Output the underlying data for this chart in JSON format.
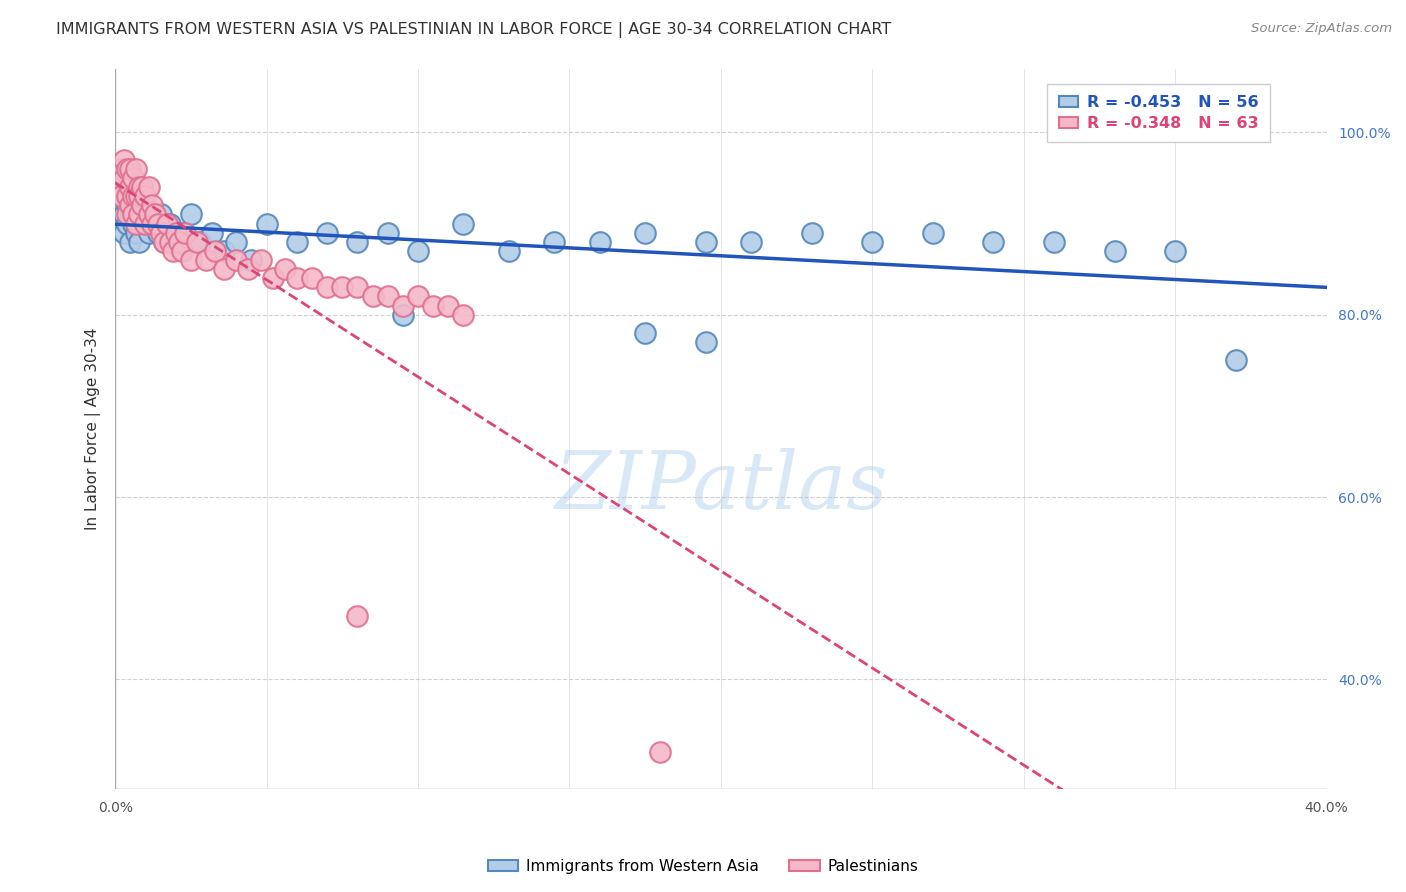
{
  "title": "IMMIGRANTS FROM WESTERN ASIA VS PALESTINIAN IN LABOR FORCE | AGE 30-34 CORRELATION CHART",
  "source": "Source: ZipAtlas.com",
  "ylabel": "In Labor Force | Age 30-34",
  "xlim": [
    0.0,
    0.4
  ],
  "ylim": [
    0.28,
    1.07
  ],
  "xticks": [
    0.0,
    0.05,
    0.1,
    0.15,
    0.2,
    0.25,
    0.3,
    0.35,
    0.4
  ],
  "yticks": [
    0.4,
    0.6,
    0.8,
    1.0
  ],
  "ytick_labels": [
    "40.0%",
    "60.0%",
    "80.0%",
    "100.0%"
  ],
  "grid_color": "#d0d0d0",
  "background_color": "#ffffff",
  "blue_face_color": "#b3cce8",
  "blue_edge_color": "#5588bb",
  "pink_face_color": "#f5b8c8",
  "pink_edge_color": "#e07090",
  "blue_line_color": "#2255bb",
  "pink_line_color": "#dd4477",
  "blue_R": -0.453,
  "blue_N": 56,
  "pink_R": -0.348,
  "pink_N": 63,
  "watermark": "ZIPatlas",
  "blue_scatter_x": [
    0.002,
    0.003,
    0.003,
    0.004,
    0.004,
    0.005,
    0.005,
    0.005,
    0.006,
    0.006,
    0.007,
    0.007,
    0.008,
    0.008,
    0.009,
    0.01,
    0.01,
    0.011,
    0.012,
    0.013,
    0.014,
    0.015,
    0.016,
    0.018,
    0.02,
    0.022,
    0.025,
    0.028,
    0.032,
    0.036,
    0.04,
    0.045,
    0.05,
    0.06,
    0.07,
    0.08,
    0.09,
    0.1,
    0.115,
    0.13,
    0.145,
    0.16,
    0.175,
    0.195,
    0.21,
    0.23,
    0.25,
    0.27,
    0.29,
    0.31,
    0.33,
    0.35,
    0.37,
    0.175,
    0.195,
    0.095
  ],
  "blue_scatter_y": [
    0.93,
    0.91,
    0.89,
    0.92,
    0.9,
    0.91,
    0.93,
    0.88,
    0.92,
    0.9,
    0.91,
    0.89,
    0.92,
    0.88,
    0.91,
    0.9,
    0.92,
    0.89,
    0.91,
    0.9,
    0.89,
    0.91,
    0.88,
    0.9,
    0.88,
    0.89,
    0.91,
    0.88,
    0.89,
    0.87,
    0.88,
    0.86,
    0.9,
    0.88,
    0.89,
    0.88,
    0.89,
    0.87,
    0.9,
    0.87,
    0.88,
    0.88,
    0.89,
    0.88,
    0.88,
    0.89,
    0.88,
    0.89,
    0.88,
    0.88,
    0.87,
    0.87,
    0.75,
    0.78,
    0.77,
    0.8
  ],
  "pink_scatter_x": [
    0.001,
    0.002,
    0.002,
    0.003,
    0.003,
    0.004,
    0.004,
    0.004,
    0.005,
    0.005,
    0.005,
    0.006,
    0.006,
    0.006,
    0.007,
    0.007,
    0.007,
    0.008,
    0.008,
    0.008,
    0.009,
    0.009,
    0.01,
    0.01,
    0.011,
    0.011,
    0.012,
    0.012,
    0.013,
    0.014,
    0.015,
    0.016,
    0.017,
    0.018,
    0.019,
    0.02,
    0.021,
    0.022,
    0.023,
    0.025,
    0.027,
    0.03,
    0.033,
    0.036,
    0.04,
    0.044,
    0.048,
    0.052,
    0.056,
    0.06,
    0.065,
    0.07,
    0.075,
    0.08,
    0.085,
    0.09,
    0.095,
    0.1,
    0.105,
    0.11,
    0.115,
    0.08,
    0.18
  ],
  "pink_scatter_y": [
    0.94,
    0.96,
    0.93,
    0.97,
    0.95,
    0.93,
    0.96,
    0.91,
    0.94,
    0.92,
    0.96,
    0.93,
    0.95,
    0.91,
    0.93,
    0.96,
    0.9,
    0.94,
    0.91,
    0.93,
    0.92,
    0.94,
    0.9,
    0.93,
    0.91,
    0.94,
    0.9,
    0.92,
    0.91,
    0.9,
    0.89,
    0.88,
    0.9,
    0.88,
    0.87,
    0.89,
    0.88,
    0.87,
    0.89,
    0.86,
    0.88,
    0.86,
    0.87,
    0.85,
    0.86,
    0.85,
    0.86,
    0.84,
    0.85,
    0.84,
    0.84,
    0.83,
    0.83,
    0.83,
    0.82,
    0.82,
    0.81,
    0.82,
    0.81,
    0.81,
    0.8,
    0.47,
    0.32
  ],
  "legend_blue_label": "Immigrants from Western Asia",
  "legend_pink_label": "Palestinians",
  "marker_size": 220,
  "marker_edge_width": 1.5
}
